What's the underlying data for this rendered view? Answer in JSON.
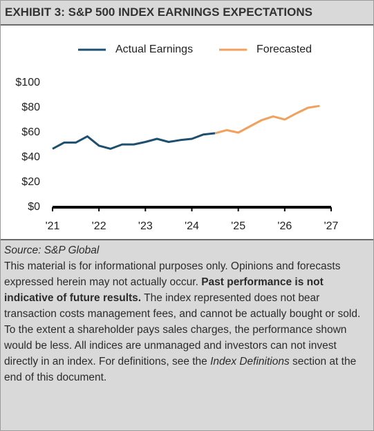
{
  "header": {
    "title": "EXHIBIT 3: S&P 500 INDEX EARNINGS EXPECTATIONS"
  },
  "chart_data": {
    "type": "line",
    "x": [
      2021,
      2021.25,
      2021.5,
      2021.75,
      2022,
      2022.25,
      2022.5,
      2022.75,
      2023,
      2023.25,
      2023.5,
      2023.75,
      2024,
      2024.25,
      2024.5,
      2024.75,
      2025,
      2025.25,
      2025.5,
      2025.75,
      2026,
      2026.25,
      2026.5,
      2026.75
    ],
    "series": [
      {
        "name": "Actual Earnings",
        "color": "#1c4f70",
        "values": [
          47,
          52,
          52,
          57,
          49.5,
          47,
          50.5,
          50.5,
          52.5,
          55,
          52.5,
          54,
          55,
          58.5,
          59.5,
          null,
          null,
          null,
          null,
          null,
          null,
          null,
          null,
          null
        ]
      },
      {
        "name": "Forecasted",
        "color": "#f5a05a",
        "values": [
          null,
          null,
          null,
          null,
          null,
          null,
          null,
          null,
          null,
          null,
          null,
          null,
          null,
          null,
          59.5,
          62,
          60,
          65,
          70,
          73,
          70.5,
          75.5,
          80,
          81.5
        ]
      }
    ],
    "xlim": [
      2021,
      2027
    ],
    "xticks": [
      {
        "value": 2021,
        "label": "'21"
      },
      {
        "value": 2022,
        "label": "'22"
      },
      {
        "value": 2023,
        "label": "'23"
      },
      {
        "value": 2024,
        "label": "'24"
      },
      {
        "value": 2025,
        "label": "'25"
      },
      {
        "value": 2026,
        "label": "'26"
      },
      {
        "value": 2027,
        "label": "'27"
      }
    ],
    "ylim": [
      0,
      100
    ],
    "yticks": [
      {
        "value": 0,
        "label": "$0"
      },
      {
        "value": 20,
        "label": "$20"
      },
      {
        "value": 40,
        "label": "$40"
      },
      {
        "value": 60,
        "label": "$60"
      },
      {
        "value": 80,
        "label": "$80"
      },
      {
        "value": 100,
        "label": "$100"
      }
    ],
    "legend": "top"
  },
  "footer": {
    "source": "Source: S&P Global",
    "note": {
      "part1": "This material is for informational purposes only. Opinions and forecasts expressed herein may not actually occur.",
      "bold": "Past performance is not indicative of future results.",
      "part2": "The index represented does not bear transaction costs management fees, and cannot be actually bought or sold. To the extent a shareholder pays sales charges, the performance shown would be less. All indices are unmanaged and investors can not invest directly in an index. For definitions, see the",
      "italic": "Index Definitions",
      "part3": "section at the end of this document."
    }
  }
}
